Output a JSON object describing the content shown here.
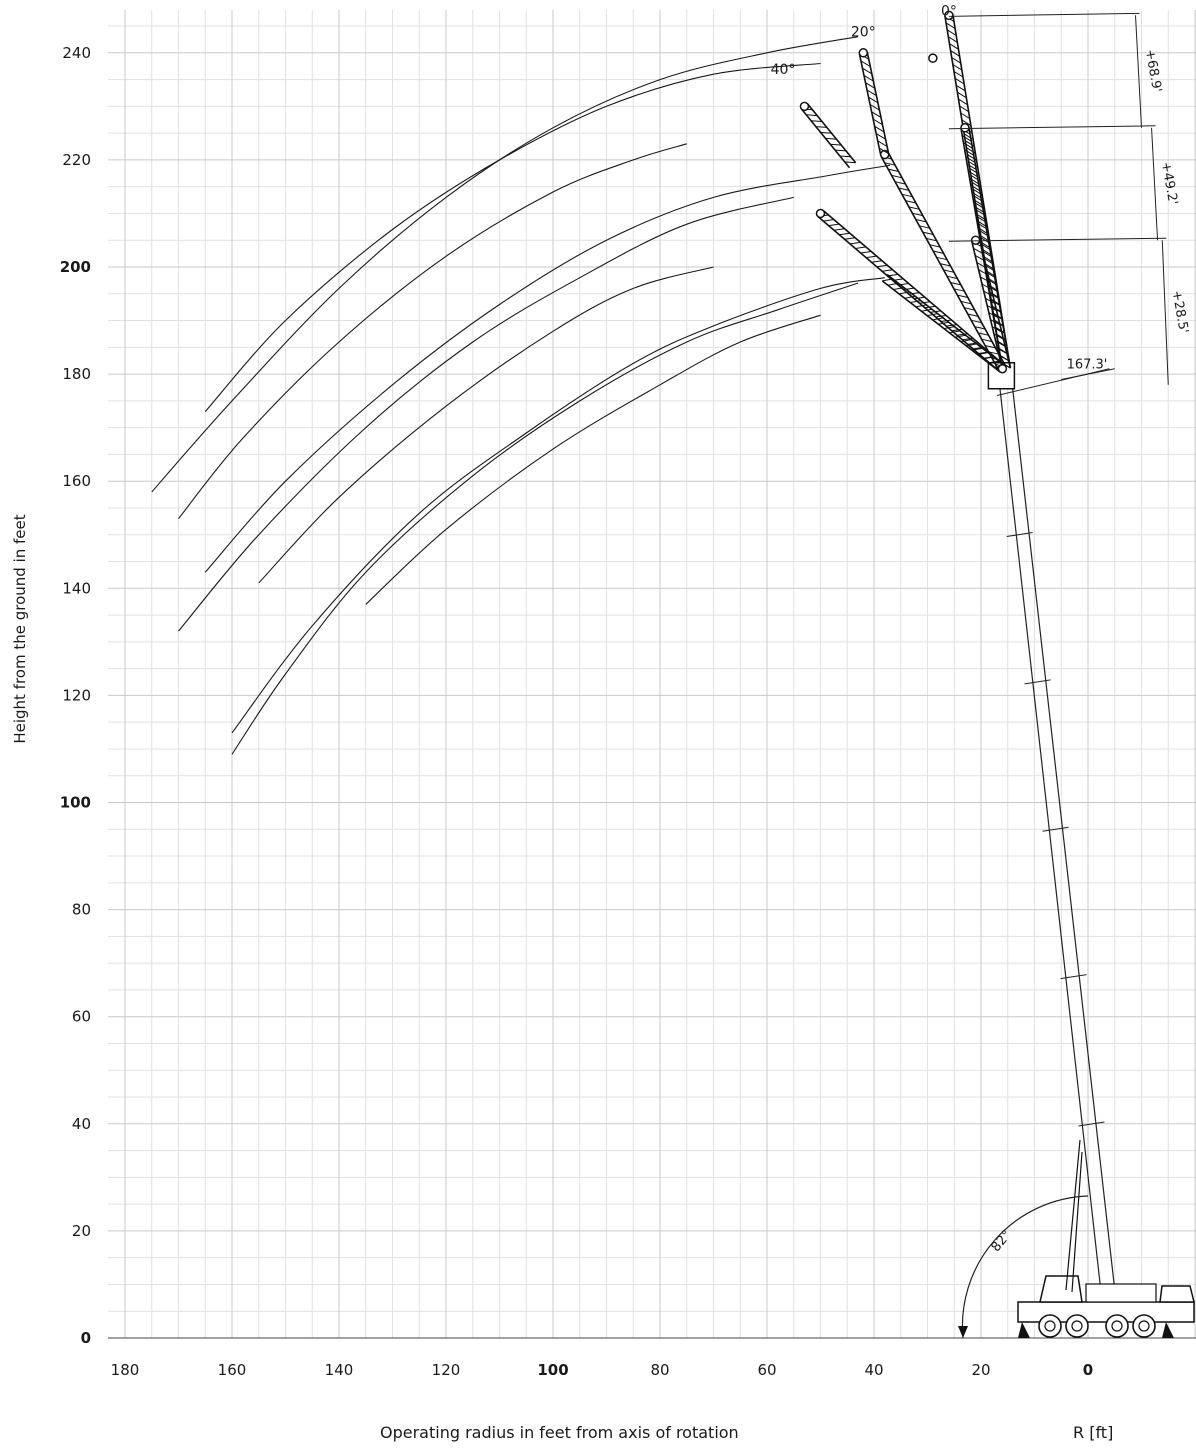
{
  "chart_data": {
    "type": "line",
    "title": "",
    "xlabel": "Operating radius in feet from axis of rotation",
    "x_unit": "R [ft]",
    "ylabel": "Height from the ground in feet",
    "xlim": [
      180,
      -20
    ],
    "ylim": [
      0,
      250
    ],
    "x_ticks": [
      180,
      160,
      140,
      120,
      100,
      80,
      60,
      40,
      20,
      0
    ],
    "x_tick_labels": [
      "180",
      "160",
      "140",
      "120",
      "100",
      "80",
      "60",
      "40",
      "20",
      "0"
    ],
    "x_bold_ticks": [
      100,
      0
    ],
    "y_ticks": [
      0,
      20,
      40,
      60,
      80,
      100,
      120,
      140,
      160,
      180,
      200,
      220,
      240
    ],
    "y_tick_labels": [
      "0",
      "20",
      "40",
      "60",
      "80",
      "100",
      "120",
      "140",
      "160",
      "180",
      "200",
      "220",
      "240"
    ],
    "y_bold_ticks": [
      0,
      100,
      200
    ],
    "grid": true,
    "series": [
      {
        "values": [
          [
            175,
            158
          ],
          [
            160,
            175
          ],
          [
            140,
            196
          ],
          [
            120,
            213
          ],
          [
            100,
            226
          ],
          [
            80,
            235
          ],
          [
            60,
            240
          ],
          [
            43,
            243
          ]
        ]
      },
      {
        "values": [
          [
            165,
            173
          ],
          [
            150,
            190
          ],
          [
            130,
            207
          ],
          [
            110,
            220
          ],
          [
            90,
            230
          ],
          [
            70,
            236
          ],
          [
            50,
            238
          ]
        ]
      },
      {
        "values": [
          [
            170,
            153
          ],
          [
            158,
            168
          ],
          [
            140,
            186
          ],
          [
            120,
            202
          ],
          [
            100,
            214
          ],
          [
            85,
            220
          ],
          [
            75,
            223
          ]
        ]
      },
      {
        "values": [
          [
            165,
            143
          ],
          [
            150,
            160
          ],
          [
            130,
            178
          ],
          [
            110,
            193
          ],
          [
            90,
            205
          ],
          [
            70,
            213
          ],
          [
            49,
            217
          ],
          [
            37,
            219
          ]
        ]
      },
      {
        "values": [
          [
            170,
            132
          ],
          [
            155,
            150
          ],
          [
            135,
            170
          ],
          [
            115,
            186
          ],
          [
            95,
            198
          ],
          [
            75,
            208
          ],
          [
            55,
            213
          ]
        ]
      },
      {
        "values": [
          [
            155,
            141
          ],
          [
            140,
            157
          ],
          [
            120,
            174
          ],
          [
            100,
            188
          ],
          [
            85,
            196
          ],
          [
            70,
            200
          ]
        ]
      },
      {
        "values": [
          [
            160,
            113
          ],
          [
            145,
            133
          ],
          [
            125,
            154
          ],
          [
            105,
            169
          ],
          [
            85,
            182
          ],
          [
            70,
            189
          ],
          [
            50,
            196
          ],
          [
            38,
            198
          ]
        ]
      },
      {
        "values": [
          [
            160,
            109
          ],
          [
            150,
            124
          ],
          [
            135,
            143
          ],
          [
            115,
            161
          ],
          [
            95,
            175
          ],
          [
            75,
            186
          ],
          [
            58,
            192
          ],
          [
            43,
            197
          ]
        ]
      },
      {
        "values": [
          [
            135,
            137
          ],
          [
            120,
            151
          ],
          [
            100,
            166
          ],
          [
            80,
            178
          ],
          [
            65,
            186
          ],
          [
            50,
            191
          ]
        ]
      }
    ],
    "annotations": [
      {
        "text": "0°",
        "x": 26,
        "y": 247
      },
      {
        "text": "20°",
        "x": 42,
        "y": 243
      },
      {
        "text": "40°",
        "x": 57,
        "y": 236
      },
      {
        "text": "+68.9'",
        "x": -10,
        "y": 238
      },
      {
        "text": "+49.2'",
        "x": -13,
        "y": 220
      },
      {
        "text": "+28.5'",
        "x": -15,
        "y": 198
      },
      {
        "text": "167.3'",
        "x": 4,
        "y": 181
      },
      {
        "text": "82°",
        "x": 17,
        "y": 16
      }
    ],
    "boom_angle_deg": 82,
    "jib_angles_deg": [
      0,
      20,
      40
    ],
    "jib_extensions": [
      "+28.5'",
      "+49.2'",
      "+68.9'"
    ],
    "boom_length": "167.3'"
  }
}
